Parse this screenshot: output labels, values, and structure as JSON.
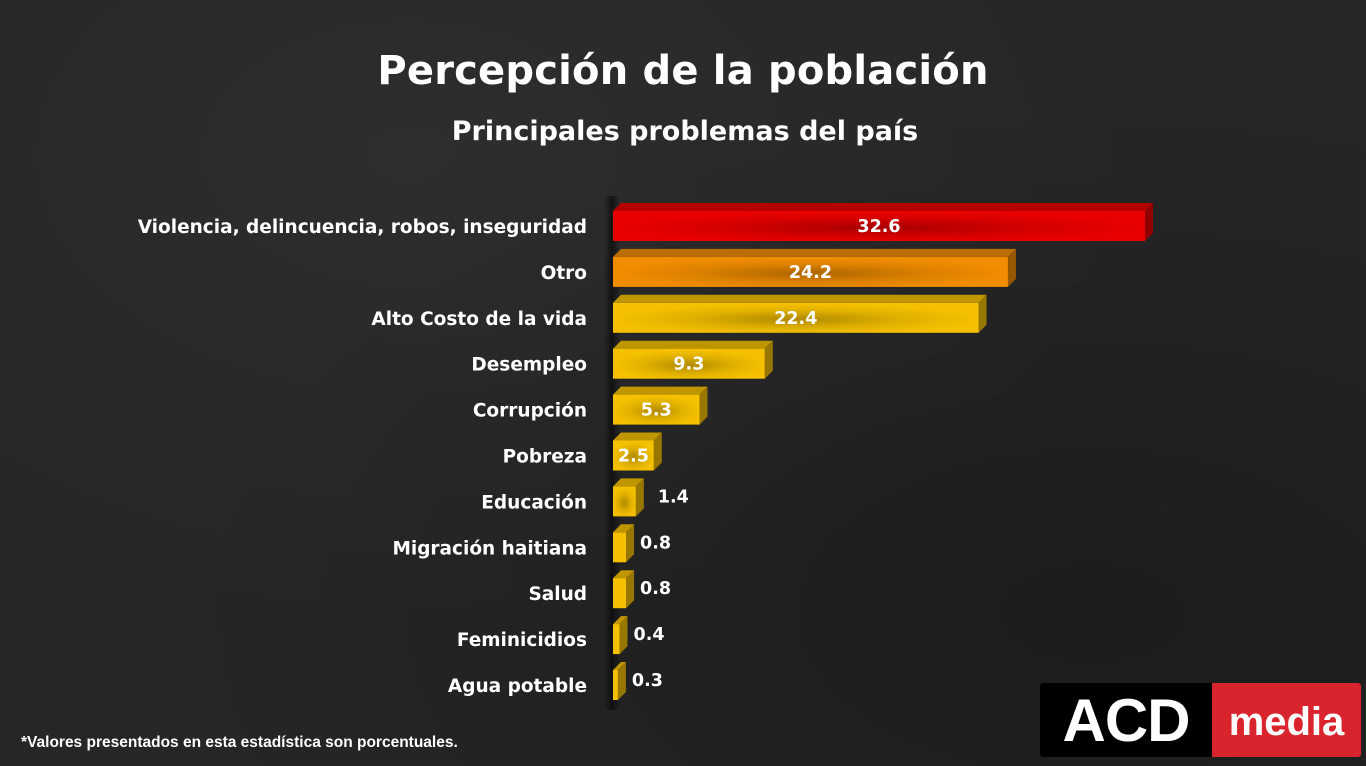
{
  "header": {
    "title": "Percepción de la población",
    "subtitle": "Principales problemas del país"
  },
  "footnote": "*Valores presentados en esta estadística son porcentuales.",
  "logo": {
    "part1": "ACD",
    "part2": "media",
    "colors": {
      "dark": "#000000",
      "red": "#d9232d"
    }
  },
  "chart_data": {
    "type": "bar",
    "orientation": "horizontal",
    "title": "Percepción de la población",
    "subtitle": "Principales problemas del país",
    "xlabel": "",
    "ylabel": "",
    "unit": "%",
    "grid": false,
    "legend": "none",
    "xlim": [
      0,
      35
    ],
    "categories": [
      "Violencia, delincuencia, robos, inseguridad",
      "Otro",
      "Alto Costo de la vida",
      "Desempleo",
      "Corrupción",
      "Pobreza",
      "Educación",
      "Migración haitiana",
      "Salud",
      "Feminicidios",
      "Agua potable"
    ],
    "values": [
      32.6,
      24.2,
      22.4,
      9.3,
      5.3,
      2.5,
      1.4,
      0.8,
      0.8,
      0.4,
      0.3
    ],
    "value_labels": [
      "32.6",
      "24.2",
      "22.4",
      "9.3",
      "5.3",
      "2.5",
      "1.4",
      "0.8",
      "0.8",
      "0.4",
      "0.3"
    ],
    "bar_colors": [
      "#e80000",
      "#f08c00",
      "#f5c000",
      "#f5c000",
      "#f5c000",
      "#f5c000",
      "#f5c000",
      "#f5c000",
      "#f5c000",
      "#f5c000",
      "#f5c000"
    ],
    "footnote": "*Valores presentados en esta estadística son porcentuales."
  }
}
